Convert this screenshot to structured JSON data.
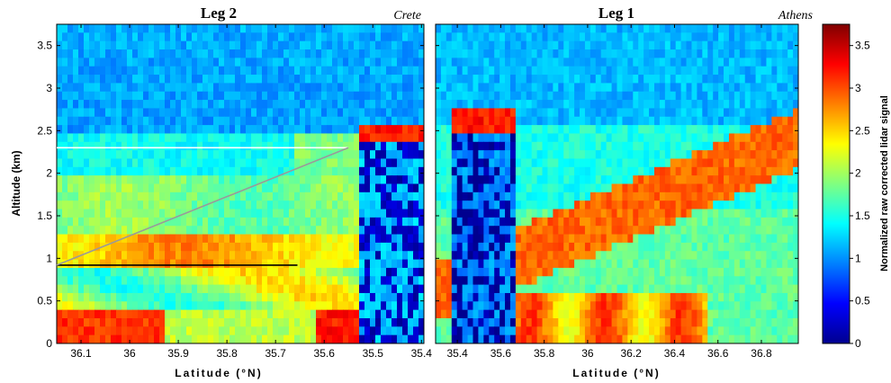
{
  "chart_data": [
    {
      "type": "heatmap",
      "title": "Leg 2",
      "place_label": "Crete",
      "xlabel": "Latitude (°N)",
      "ylabel": "Altitude (km)",
      "xlim": [
        36.15,
        35.395
      ],
      "ylim": [
        0,
        3.75
      ],
      "xticks": [
        36.1,
        36.0,
        35.9,
        35.8,
        35.7,
        35.6,
        35.5,
        35.4
      ],
      "xtick_labels": [
        "36.1",
        "36",
        "35.9",
        "35.8",
        "35.7",
        "35.6",
        "35.5",
        "35.4"
      ],
      "yticks": [
        0,
        0.5,
        1,
        1.5,
        2,
        2.5,
        3,
        3.5
      ],
      "ytick_labels": [
        "0",
        "0.5",
        "1",
        "1.5",
        "2",
        "2.5",
        "3",
        "3.5"
      ],
      "annotations": [
        {
          "type": "hline",
          "color": "#ffffff",
          "y": 2.3,
          "x_from": 36.15,
          "x_to": 35.55
        },
        {
          "type": "hline",
          "color": "#000000",
          "y": 0.92,
          "x_from": 36.15,
          "x_to": 35.655
        },
        {
          "type": "segment",
          "color": "#9a9a9a",
          "from": [
            36.15,
            0.92
          ],
          "to": [
            35.55,
            2.3
          ]
        }
      ]
    },
    {
      "type": "heatmap",
      "title": "Leg 1",
      "place_label": "Athens",
      "xlabel": "Latitude (°N)",
      "ylabel": "",
      "xlim": [
        35.3,
        36.97
      ],
      "ylim": [
        0,
        3.75
      ],
      "xticks": [
        35.4,
        35.6,
        35.8,
        36.0,
        36.2,
        36.4,
        36.6,
        36.8
      ],
      "xtick_labels": [
        "35.4",
        "35.6",
        "35.8",
        "36",
        "36.2",
        "36.4",
        "36.6",
        "36.8"
      ],
      "yticks": [
        0,
        0.5,
        1,
        1.5,
        2,
        2.5,
        3,
        3.5
      ],
      "ytick_labels": [],
      "annotations": []
    }
  ],
  "colorbar": {
    "label": "Normalized raw corrected lidar signal",
    "range": [
      0,
      3.75
    ],
    "ticks": [
      0,
      0.5,
      1,
      1.5,
      2,
      2.5,
      3,
      3.5
    ],
    "tick_labels": [
      "0",
      "0.5",
      "1",
      "1.5",
      "2",
      "2.5",
      "3",
      "3.5"
    ],
    "colormap": "jet",
    "colors": [
      "#00008f",
      "#0000ff",
      "#0080ff",
      "#00ffff",
      "#80ff80",
      "#ffff00",
      "#ff8000",
      "#ff0000",
      "#800000"
    ]
  }
}
